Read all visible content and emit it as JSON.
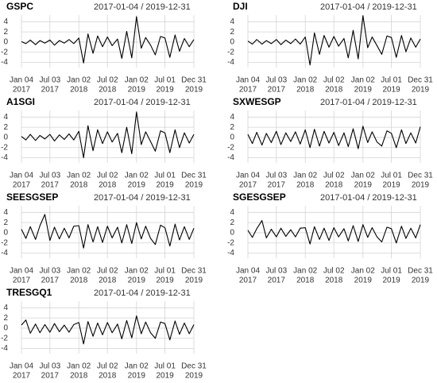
{
  "chart_data": [
    {
      "type": "line",
      "title": "GSPC",
      "subtitle": "2017-01-04 / 2019-12-31",
      "color": "#000000",
      "grid": true,
      "x": [
        "2017-01-04",
        "2017-02-01",
        "2017-03-01",
        "2017-04-03",
        "2017-05-01",
        "2017-06-01",
        "2017-07-03",
        "2017-08-01",
        "2017-09-01",
        "2017-10-02",
        "2017-11-01",
        "2017-12-01",
        "2018-01-02",
        "2018-02-01",
        "2018-03-01",
        "2018-04-02",
        "2018-05-01",
        "2018-06-01",
        "2018-07-02",
        "2018-08-01",
        "2018-09-04",
        "2018-10-01",
        "2018-11-01",
        "2018-12-03",
        "2019-01-02",
        "2019-02-01",
        "2019-03-01",
        "2019-04-01",
        "2019-05-01",
        "2019-06-03",
        "2019-07-01",
        "2019-08-01",
        "2019-09-03",
        "2019-10-01",
        "2019-11-01",
        "2019-12-02",
        "2019-12-31"
      ],
      "values": [
        0.1,
        -0.3,
        0.4,
        -0.5,
        0.3,
        -0.2,
        0.4,
        -0.6,
        0.3,
        -0.2,
        0.5,
        -0.3,
        0.8,
        -4.1,
        1.6,
        -2.2,
        1.2,
        -0.9,
        1.0,
        -0.7,
        0.6,
        -3.2,
        2.1,
        -3.1,
        5.0,
        -1.2,
        0.9,
        -0.6,
        -2.5,
        1.1,
        0.8,
        -3.0,
        1.4,
        -1.8,
        0.7,
        -0.9,
        0.5
      ],
      "ylim": [
        -5,
        5.3
      ],
      "yticks": [
        4,
        2,
        0,
        -2,
        -4
      ],
      "xlim": [
        "2017-01-04",
        "2019-12-31"
      ],
      "xticks": [
        {
          "value": "2017-01-04",
          "label": [
            "Jan 04",
            "2017"
          ]
        },
        {
          "value": "2017-07-03",
          "label": [
            "Jul 03",
            "2017"
          ]
        },
        {
          "value": "2018-01-02",
          "label": [
            "Jan 02",
            "2018"
          ]
        },
        {
          "value": "2018-07-02",
          "label": [
            "Jul 02",
            "2018"
          ]
        },
        {
          "value": "2019-01-02",
          "label": [
            "Jan 02",
            "2019"
          ]
        },
        {
          "value": "2019-07-01",
          "label": [
            "Jul 01",
            "2019"
          ]
        },
        {
          "value": "2019-12-31",
          "label": [
            "Dec 31",
            "2019"
          ]
        }
      ]
    },
    {
      "type": "line",
      "title": "DJI",
      "subtitle": "2017-01-04 / 2019-12-31",
      "color": "#000000",
      "grid": true,
      "x": [
        "2017-01-04",
        "2017-02-01",
        "2017-03-01",
        "2017-04-03",
        "2017-05-01",
        "2017-06-01",
        "2017-07-03",
        "2017-08-01",
        "2017-09-01",
        "2017-10-02",
        "2017-11-01",
        "2017-12-01",
        "2018-01-02",
        "2018-02-01",
        "2018-03-01",
        "2018-04-02",
        "2018-05-01",
        "2018-06-01",
        "2018-07-02",
        "2018-08-01",
        "2018-09-04",
        "2018-10-01",
        "2018-11-01",
        "2018-12-03",
        "2019-01-02",
        "2019-02-01",
        "2019-03-01",
        "2019-04-01",
        "2019-05-01",
        "2019-06-03",
        "2019-07-01",
        "2019-08-01",
        "2019-09-03",
        "2019-10-01",
        "2019-11-01",
        "2019-12-02",
        "2019-12-31"
      ],
      "values": [
        0.2,
        -0.4,
        0.5,
        -0.4,
        0.3,
        -0.3,
        0.5,
        -0.5,
        0.4,
        -0.3,
        0.6,
        -0.4,
        1.0,
        -4.5,
        1.8,
        -2.4,
        1.3,
        -1.0,
        1.1,
        -0.8,
        0.7,
        -3.1,
        2.3,
        -3.3,
        5.2,
        -1.1,
        1.0,
        -0.7,
        -2.4,
        1.2,
        0.9,
        -3.0,
        1.3,
        -1.9,
        0.8,
        -1.0,
        0.6
      ],
      "ylim": [
        -5,
        5.3
      ],
      "yticks": [
        4,
        2,
        0,
        -2,
        -4
      ],
      "xlim": [
        "2017-01-04",
        "2019-12-31"
      ],
      "xticks": [
        {
          "value": "2017-01-04",
          "label": [
            "Jan 04",
            "2017"
          ]
        },
        {
          "value": "2017-07-03",
          "label": [
            "Jul 03",
            "2017"
          ]
        },
        {
          "value": "2018-01-02",
          "label": [
            "Jan 02",
            "2018"
          ]
        },
        {
          "value": "2018-07-02",
          "label": [
            "Jul 02",
            "2018"
          ]
        },
        {
          "value": "2019-01-02",
          "label": [
            "Jan 02",
            "2019"
          ]
        },
        {
          "value": "2019-07-01",
          "label": [
            "Jul 01",
            "2019"
          ]
        },
        {
          "value": "2019-12-31",
          "label": [
            "Dec 31",
            "2019"
          ]
        }
      ]
    },
    {
      "type": "line",
      "title": "A1SGI",
      "subtitle": "2017-01-04 / 2019-12-31",
      "color": "#000000",
      "grid": true,
      "x": [
        "2017-01-04",
        "2017-02-01",
        "2017-03-01",
        "2017-04-03",
        "2017-05-01",
        "2017-06-01",
        "2017-07-03",
        "2017-08-01",
        "2017-09-01",
        "2017-10-02",
        "2017-11-01",
        "2017-12-01",
        "2018-01-02",
        "2018-02-01",
        "2018-03-01",
        "2018-04-02",
        "2018-05-01",
        "2018-06-01",
        "2018-07-02",
        "2018-08-01",
        "2018-09-04",
        "2018-10-01",
        "2018-11-01",
        "2018-12-03",
        "2019-01-02",
        "2019-02-01",
        "2019-03-01",
        "2019-04-01",
        "2019-05-01",
        "2019-06-03",
        "2019-07-01",
        "2019-08-01",
        "2019-09-03",
        "2019-10-01",
        "2019-11-01",
        "2019-12-02",
        "2019-12-31"
      ],
      "values": [
        0.2,
        -0.5,
        0.6,
        -0.6,
        0.4,
        -0.3,
        0.6,
        -0.7,
        0.5,
        -0.4,
        0.7,
        -0.5,
        1.2,
        -4.0,
        2.3,
        -2.6,
        1.5,
        -1.2,
        1.1,
        -0.9,
        0.8,
        -3.0,
        2.0,
        -3.2,
        5.0,
        -1.4,
        1.1,
        -0.8,
        -2.7,
        1.3,
        0.9,
        -3.0,
        1.5,
        -2.0,
        0.9,
        -1.1,
        0.6
      ],
      "ylim": [
        -5,
        5.3
      ],
      "yticks": [
        4,
        2,
        0,
        -2,
        -4
      ],
      "xlim": [
        "2017-01-04",
        "2019-12-31"
      ],
      "xticks": [
        {
          "value": "2017-01-04",
          "label": [
            "Jan 04",
            "2017"
          ]
        },
        {
          "value": "2017-07-03",
          "label": [
            "Jul 03",
            "2017"
          ]
        },
        {
          "value": "2018-01-02",
          "label": [
            "Jan 02",
            "2018"
          ]
        },
        {
          "value": "2018-07-02",
          "label": [
            "Jul 02",
            "2018"
          ]
        },
        {
          "value": "2019-01-02",
          "label": [
            "Jan 02",
            "2019"
          ]
        },
        {
          "value": "2019-07-01",
          "label": [
            "Jul 01",
            "2019"
          ]
        },
        {
          "value": "2019-12-31",
          "label": [
            "Dec 31",
            "2019"
          ]
        }
      ]
    },
    {
      "type": "line",
      "title": "SXWESGP",
      "subtitle": "2017-01-04 / 2019-12-31",
      "color": "#000000",
      "grid": true,
      "x": [
        "2017-01-04",
        "2017-02-01",
        "2017-03-01",
        "2017-04-03",
        "2017-05-01",
        "2017-06-01",
        "2017-07-03",
        "2017-08-01",
        "2017-09-01",
        "2017-10-02",
        "2017-11-01",
        "2017-12-01",
        "2018-01-02",
        "2018-02-01",
        "2018-03-01",
        "2018-04-02",
        "2018-05-01",
        "2018-06-01",
        "2018-07-02",
        "2018-08-01",
        "2018-09-04",
        "2018-10-01",
        "2018-11-01",
        "2018-12-03",
        "2019-01-02",
        "2019-02-01",
        "2019-03-01",
        "2019-04-01",
        "2019-05-01",
        "2019-06-03",
        "2019-07-01",
        "2019-08-01",
        "2019-09-03",
        "2019-10-01",
        "2019-11-01",
        "2019-12-02",
        "2019-12-31"
      ],
      "values": [
        0.6,
        -1.2,
        1.0,
        -1.5,
        0.8,
        -1.0,
        1.2,
        -1.4,
        0.9,
        -0.8,
        1.1,
        -1.3,
        1.5,
        -2.0,
        1.6,
        -1.7,
        1.2,
        -1.1,
        1.0,
        -1.6,
        0.9,
        -1.8,
        1.7,
        -2.2,
        2.2,
        -1.0,
        1.1,
        -0.9,
        -1.7,
        1.3,
        0.8,
        -2.0,
        1.5,
        -1.2,
        0.9,
        -1.1,
        2.1
      ],
      "ylim": [
        -5,
        5.3
      ],
      "yticks": [
        4,
        2,
        0,
        -2,
        -4
      ],
      "xlim": [
        "2017-01-04",
        "2019-12-31"
      ],
      "xticks": [
        {
          "value": "2017-01-04",
          "label": [
            "Jan 04",
            "2017"
          ]
        },
        {
          "value": "2017-07-03",
          "label": [
            "Jul 03",
            "2017"
          ]
        },
        {
          "value": "2018-01-02",
          "label": [
            "Jan 02",
            "2018"
          ]
        },
        {
          "value": "2018-07-02",
          "label": [
            "Jul 02",
            "2018"
          ]
        },
        {
          "value": "2019-01-02",
          "label": [
            "Jan 02",
            "2019"
          ]
        },
        {
          "value": "2019-07-01",
          "label": [
            "Jul 01",
            "2019"
          ]
        },
        {
          "value": "2019-12-31",
          "label": [
            "Dec 31",
            "2019"
          ]
        }
      ]
    },
    {
      "type": "line",
      "title": "SEESGSEP",
      "subtitle": "2017-01-04 / 2019-12-31",
      "color": "#000000",
      "grid": true,
      "x": [
        "2017-01-04",
        "2017-02-01",
        "2017-03-01",
        "2017-04-03",
        "2017-05-01",
        "2017-06-01",
        "2017-07-03",
        "2017-08-01",
        "2017-09-01",
        "2017-10-02",
        "2017-11-01",
        "2017-12-01",
        "2018-01-02",
        "2018-02-01",
        "2018-03-01",
        "2018-04-02",
        "2018-05-01",
        "2018-06-01",
        "2018-07-02",
        "2018-08-01",
        "2018-09-04",
        "2018-10-01",
        "2018-11-01",
        "2018-12-03",
        "2019-01-02",
        "2019-02-01",
        "2019-03-01",
        "2019-04-01",
        "2019-05-01",
        "2019-06-03",
        "2019-07-01",
        "2019-08-01",
        "2019-09-03",
        "2019-10-01",
        "2019-11-01",
        "2019-12-02",
        "2019-12-31"
      ],
      "values": [
        0.7,
        -1.1,
        1.2,
        -1.3,
        1.4,
        3.6,
        -1.5,
        1.1,
        -1.2,
        0.9,
        -1.0,
        1.3,
        1.4,
        -3.0,
        1.6,
        -1.8,
        1.2,
        -1.9,
        1.3,
        -1.0,
        1.1,
        -2.0,
        1.6,
        -2.1,
        2.0,
        -1.2,
        1.3,
        -1.1,
        -2.3,
        1.5,
        1.0,
        -2.6,
        1.7,
        -1.4,
        1.2,
        -1.3,
        0.9
      ],
      "ylim": [
        -5,
        5.3
      ],
      "yticks": [
        4,
        2,
        0,
        -2,
        -4
      ],
      "xlim": [
        "2017-01-04",
        "2019-12-31"
      ],
      "xticks": [
        {
          "value": "2017-01-04",
          "label": [
            "Jan 04",
            "2017"
          ]
        },
        {
          "value": "2017-07-03",
          "label": [
            "Jul 03",
            "2017"
          ]
        },
        {
          "value": "2018-01-02",
          "label": [
            "Jan 02",
            "2018"
          ]
        },
        {
          "value": "2018-07-02",
          "label": [
            "Jul 02",
            "2018"
          ]
        },
        {
          "value": "2019-01-02",
          "label": [
            "Jan 02",
            "2019"
          ]
        },
        {
          "value": "2019-07-01",
          "label": [
            "Jul 01",
            "2019"
          ]
        },
        {
          "value": "2019-12-31",
          "label": [
            "Dec 31",
            "2019"
          ]
        }
      ]
    },
    {
      "type": "line",
      "title": "SGESGSEP",
      "subtitle": "2017-01-04 / 2019-12-31",
      "color": "#000000",
      "grid": true,
      "x": [
        "2017-01-04",
        "2017-02-01",
        "2017-03-01",
        "2017-04-03",
        "2017-05-01",
        "2017-06-01",
        "2017-07-03",
        "2017-08-01",
        "2017-09-01",
        "2017-10-02",
        "2017-11-01",
        "2017-12-01",
        "2018-01-02",
        "2018-02-01",
        "2018-03-01",
        "2018-04-02",
        "2018-05-01",
        "2018-06-01",
        "2018-07-02",
        "2018-08-01",
        "2018-09-04",
        "2018-10-01",
        "2018-11-01",
        "2018-12-03",
        "2019-01-02",
        "2019-02-01",
        "2019-03-01",
        "2019-04-01",
        "2019-05-01",
        "2019-06-03",
        "2019-07-01",
        "2019-08-01",
        "2019-09-03",
        "2019-10-01",
        "2019-11-01",
        "2019-12-02",
        "2019-12-31"
      ],
      "values": [
        0.5,
        -0.9,
        0.8,
        2.4,
        -1.0,
        0.7,
        -0.8,
        0.9,
        -0.7,
        0.6,
        -0.8,
        0.9,
        1.0,
        -2.2,
        1.2,
        -1.3,
        0.9,
        -1.5,
        1.0,
        -0.8,
        0.8,
        -1.6,
        1.4,
        -1.7,
        1.6,
        -0.9,
        1.0,
        -0.8,
        -1.8,
        1.1,
        0.8,
        -2.0,
        1.3,
        -1.1,
        0.9,
        -1.0,
        1.6
      ],
      "ylim": [
        -5,
        5.3
      ],
      "yticks": [
        4,
        2,
        0,
        -2,
        -4
      ],
      "xlim": [
        "2017-01-04",
        "2019-12-31"
      ],
      "xticks": [
        {
          "value": "2017-01-04",
          "label": [
            "Jan 04",
            "2017"
          ]
        },
        {
          "value": "2017-07-03",
          "label": [
            "Jul 03",
            "2017"
          ]
        },
        {
          "value": "2018-01-02",
          "label": [
            "Jan 02",
            "2018"
          ]
        },
        {
          "value": "2018-07-02",
          "label": [
            "Jul 02",
            "2018"
          ]
        },
        {
          "value": "2019-01-02",
          "label": [
            "Jan 02",
            "2019"
          ]
        },
        {
          "value": "2019-07-01",
          "label": [
            "Jul 01",
            "2019"
          ]
        },
        {
          "value": "2019-12-31",
          "label": [
            "Dec 31",
            "2019"
          ]
        }
      ]
    },
    {
      "type": "line",
      "title": "TRESGQ1",
      "subtitle": "2017-01-04 / 2019-12-31",
      "color": "#000000",
      "grid": true,
      "x": [
        "2017-01-04",
        "2017-02-01",
        "2017-03-01",
        "2017-04-03",
        "2017-05-01",
        "2017-06-01",
        "2017-07-03",
        "2017-08-01",
        "2017-09-01",
        "2017-10-02",
        "2017-11-01",
        "2017-12-01",
        "2018-01-02",
        "2018-02-01",
        "2018-03-01",
        "2018-04-02",
        "2018-05-01",
        "2018-06-01",
        "2018-07-02",
        "2018-08-01",
        "2018-09-04",
        "2018-10-01",
        "2018-11-01",
        "2018-12-03",
        "2019-01-02",
        "2019-02-01",
        "2019-03-01",
        "2019-04-01",
        "2019-05-01",
        "2019-06-03",
        "2019-07-01",
        "2019-08-01",
        "2019-09-03",
        "2019-10-01",
        "2019-11-01",
        "2019-12-02",
        "2019-12-31"
      ],
      "values": [
        0.6,
        1.6,
        -1.0,
        0.8,
        -0.9,
        0.7,
        -0.8,
        0.9,
        -0.7,
        0.6,
        -0.8,
        0.7,
        1.1,
        -3.1,
        1.3,
        -1.6,
        1.0,
        -1.3,
        1.1,
        -0.9,
        0.8,
        -2.1,
        1.5,
        -1.9,
        2.4,
        -1.1,
        1.2,
        -0.9,
        -2.0,
        1.2,
        0.9,
        -2.3,
        1.4,
        -1.2,
        1.0,
        -1.1,
        0.7
      ],
      "ylim": [
        -5,
        5.3
      ],
      "yticks": [
        4,
        2,
        0,
        -2,
        -4
      ],
      "xlim": [
        "2017-01-04",
        "2019-12-31"
      ],
      "xticks": [
        {
          "value": "2017-01-04",
          "label": [
            "Jan 04",
            "2017"
          ]
        },
        {
          "value": "2017-07-03",
          "label": [
            "Jul 03",
            "2017"
          ]
        },
        {
          "value": "2018-01-02",
          "label": [
            "Jan 02",
            "2018"
          ]
        },
        {
          "value": "2018-07-02",
          "label": [
            "Jul 02",
            "2018"
          ]
        },
        {
          "value": "2019-01-02",
          "label": [
            "Jan 02",
            "2019"
          ]
        },
        {
          "value": "2019-07-01",
          "label": [
            "Jul 01",
            "2019"
          ]
        },
        {
          "value": "2019-12-31",
          "label": [
            "Dec 31",
            "2019"
          ]
        }
      ]
    }
  ]
}
